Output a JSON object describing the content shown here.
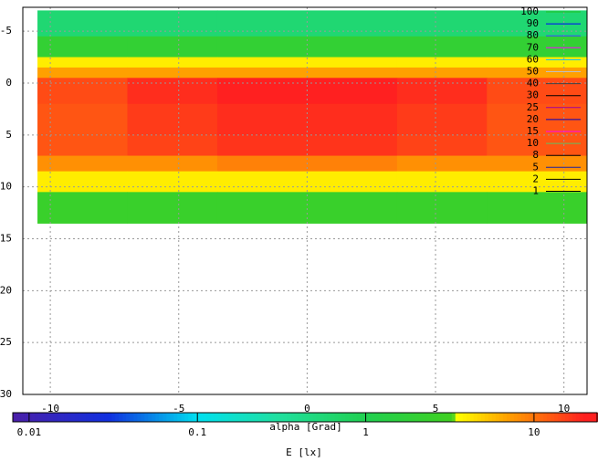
{
  "chart_data": {
    "type": "heatmap",
    "x_label": "alpha [Grad]",
    "colorbar_label": "E [lx]",
    "xlim": [
      -11.07,
      10.9
    ],
    "ylim": [
      -7.3,
      30
    ],
    "xticks": [
      -10,
      -5,
      0,
      5,
      10
    ],
    "yticks": [
      -5,
      0,
      5,
      10,
      15,
      20,
      25,
      30
    ],
    "grid": true,
    "x_edges": [
      -10.5,
      -7,
      -3.5,
      0,
      3.5,
      7,
      10.9
    ],
    "y_edges": [
      -7,
      -4.5,
      -2.5,
      -1.5,
      -0.5,
      2,
      5,
      7,
      8.5,
      10.5,
      13.5
    ],
    "z": [
      [
        0.6,
        0.6,
        0.6,
        0.6,
        0.6,
        0.6
      ],
      [
        2,
        2,
        2,
        2,
        2,
        2
      ],
      [
        4,
        4,
        4,
        4,
        4,
        4
      ],
      [
        7,
        7,
        7,
        7,
        7,
        7
      ],
      [
        14,
        18,
        22,
        22,
        18,
        14
      ],
      [
        13,
        16,
        18,
        18,
        16,
        13
      ],
      [
        13,
        15,
        17,
        17,
        15,
        13
      ],
      [
        8,
        8,
        9,
        9,
        8,
        8
      ],
      [
        4,
        4,
        4,
        4,
        4,
        4
      ],
      [
        2.5,
        2.5,
        2.5,
        2.5,
        2.5,
        2.5
      ]
    ],
    "cblim": [
      0.008,
      24
    ],
    "cbticks": [
      0.01,
      0.1,
      1,
      10
    ],
    "cb_log": true,
    "palette": [
      [
        0.008,
        "#4b1fa8"
      ],
      [
        0.03,
        "#1030e0"
      ],
      [
        0.1,
        "#00e0f0"
      ],
      [
        0.3,
        "#20e0a0"
      ],
      [
        1,
        "#20d050"
      ],
      [
        3.3,
        "#40d020"
      ],
      [
        3.5,
        "#ffff00"
      ],
      [
        7,
        "#ffa000"
      ],
      [
        20,
        "#ff2020"
      ],
      [
        24,
        "#ff2020"
      ]
    ],
    "series": [
      {
        "name": "100",
        "color": "#20c020"
      },
      {
        "name": "90",
        "color": "#0000ff"
      },
      {
        "name": "80",
        "color": "#4040ff"
      },
      {
        "name": "70",
        "color": "#ff00ff"
      },
      {
        "name": "60",
        "color": "#00c0ff"
      },
      {
        "name": "50",
        "color": "#c0c0c0"
      },
      {
        "name": "40",
        "color": "#404040"
      },
      {
        "name": "30",
        "color": "#000000"
      },
      {
        "name": "25",
        "color": "#a000a0"
      },
      {
        "name": "20",
        "color": "#0000c0"
      },
      {
        "name": "15",
        "color": "#ff00ff"
      },
      {
        "name": "10",
        "color": "#60c060"
      },
      {
        "name": "8",
        "color": "#000000"
      },
      {
        "name": "5",
        "color": "#2020a0"
      },
      {
        "name": "2",
        "color": "#000000"
      },
      {
        "name": "1",
        "color": "#000000"
      }
    ]
  }
}
